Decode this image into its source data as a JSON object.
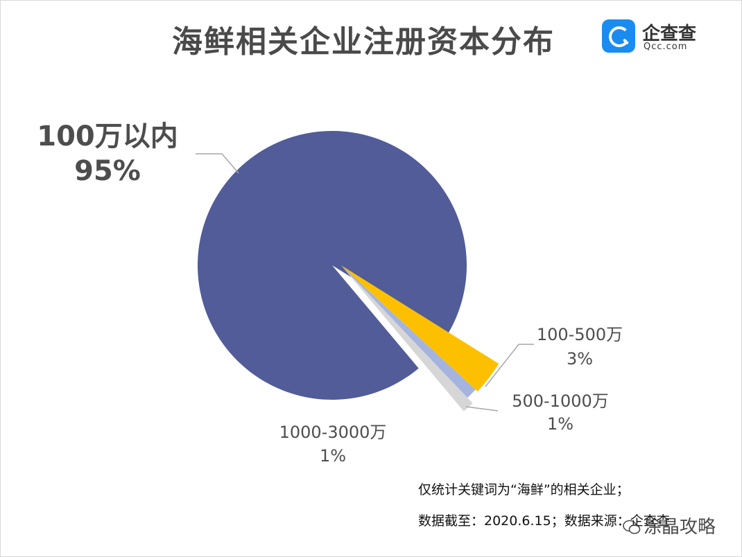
{
  "header": {
    "title": "海鲜相关企业注册资本分布",
    "logo_cn": "企查查",
    "logo_en": "Qcc.com"
  },
  "chart_data": {
    "type": "pie",
    "title": "海鲜相关企业注册资本分布",
    "slices": [
      {
        "label": "100万以内",
        "value": 95,
        "value_label": "95%",
        "color": "#515C98"
      },
      {
        "label": "100-500万",
        "value": 3,
        "value_label": "3%",
        "color": "#FDC000"
      },
      {
        "label": "500-1000万",
        "value": 1,
        "value_label": "1%",
        "color": "#A4B4DF"
      },
      {
        "label": "1000-3000万",
        "value": 1,
        "value_label": "1%",
        "color": "#D6D6D6"
      }
    ],
    "label_style": "outside-with-leader-lines",
    "exploded": true
  },
  "footnotes": [
    "仅统计关键词为“海鲜”的相关企业；",
    "数据截至：2020.6.15；数据来源：企查查"
  ],
  "watermark": "涂晶攻略"
}
